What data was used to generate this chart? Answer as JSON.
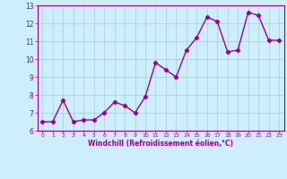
{
  "x": [
    0,
    1,
    2,
    3,
    4,
    5,
    6,
    7,
    8,
    9,
    10,
    11,
    12,
    13,
    14,
    15,
    16,
    17,
    18,
    19,
    20,
    21,
    22,
    23
  ],
  "y": [
    6.5,
    6.5,
    7.7,
    6.5,
    6.6,
    6.6,
    7.0,
    7.6,
    7.4,
    7.0,
    7.9,
    9.8,
    9.4,
    9.0,
    10.5,
    11.2,
    12.35,
    12.1,
    10.4,
    10.5,
    12.6,
    12.45,
    11.05,
    11.05
  ],
  "line_color": "#990099",
  "marker": "D",
  "marker_size": 2.2,
  "line_width": 1.0,
  "bg_color": "#cceeff",
  "grid_color": "#aacccc",
  "xlabel": "Windchill (Refroidissement éolien,°C)",
  "xlabel_color": "#990099",
  "tick_color": "#990099",
  "xlim": [
    -0.5,
    23.5
  ],
  "ylim": [
    6,
    13
  ],
  "yticks": [
    6,
    7,
    8,
    9,
    10,
    11,
    12,
    13
  ],
  "xticks": [
    0,
    1,
    2,
    3,
    4,
    5,
    6,
    7,
    8,
    9,
    10,
    11,
    12,
    13,
    14,
    15,
    16,
    17,
    18,
    19,
    20,
    21,
    22,
    23
  ],
  "spine_color": "#990099"
}
